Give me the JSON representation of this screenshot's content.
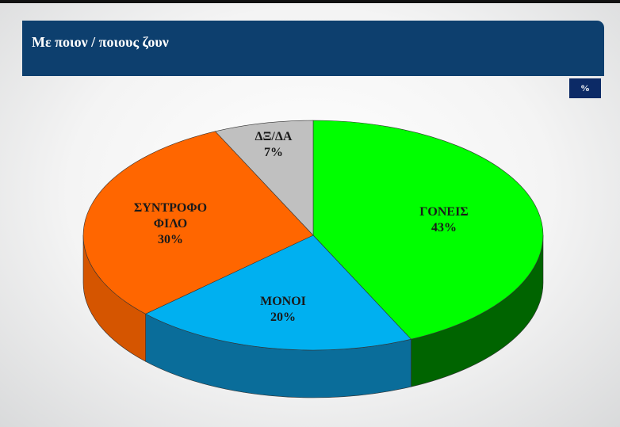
{
  "header": {
    "title": "Με ποιον / ποιους ζουν",
    "unit_badge": "%"
  },
  "chart_data": {
    "type": "pie",
    "style": "3d",
    "title": "Με ποιον / ποιους ζουν",
    "unit": "%",
    "slices": [
      {
        "label": "ΓΟΝΕΙΣ",
        "value": 43,
        "value_label": "43%",
        "color": "#00ff00",
        "side_color": "#006400"
      },
      {
        "label": "ΜΟΝΟΙ",
        "value": 20,
        "value_label": "20%",
        "color": "#00b0f0",
        "side_color": "#0a6d9a"
      },
      {
        "label": "ΣΥΝΤΡΟΦΟ ΦΙΛΟ",
        "label_lines": [
          "ΣΥΝΤΡΟΦΟ",
          "ΦΙΛΟ"
        ],
        "value": 30,
        "value_label": "30%",
        "color": "#ff6600",
        "side_color": "#d55500"
      },
      {
        "label": "ΔΞ/ΔΑ",
        "value": 7,
        "value_label": "7%",
        "color": "#c0c0c0",
        "side_color": "#8f8f8f"
      }
    ],
    "start": "top",
    "direction": "clockwise",
    "legend": "none"
  }
}
